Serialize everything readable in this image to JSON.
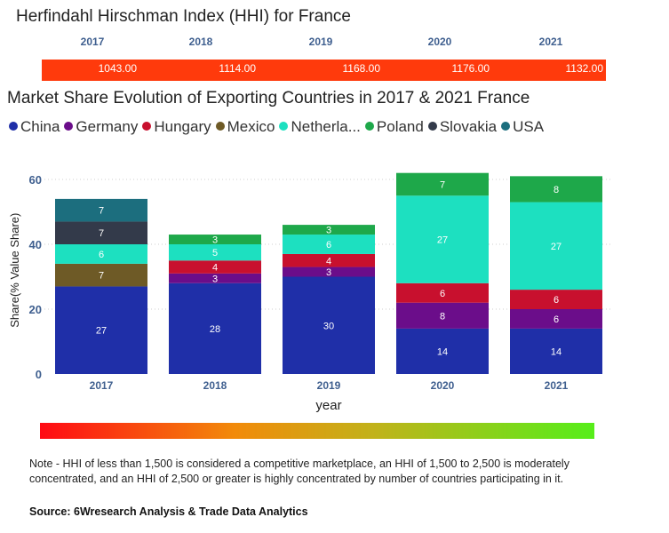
{
  "hhi": {
    "title": "Herfindahl Hirschman Index (HHI) for France",
    "years": [
      "2017",
      "2018",
      "2019",
      "2020",
      "2021"
    ],
    "values": [
      "1043.00",
      "1114.00",
      "1168.00",
      "1176.00",
      "1132.00"
    ],
    "bar_color": "#ff3a0c"
  },
  "chart_data": {
    "type": "bar",
    "stacked": true,
    "title": "Market Share Evolution of Exporting Countries in 2017 & 2021 France",
    "xlabel": "year",
    "ylabel": "Share(% Value Share)",
    "ylim": [
      0,
      65
    ],
    "yticks": [
      0,
      20,
      40,
      60
    ],
    "grid": true,
    "legend_position": "top",
    "categories": [
      "2017",
      "2018",
      "2019",
      "2020",
      "2021"
    ],
    "series": [
      {
        "name": "China",
        "legend_label": "China",
        "color": "#1f2fa8",
        "values": [
          27,
          28,
          30,
          14,
          14
        ]
      },
      {
        "name": "Germany",
        "legend_label": "Germany",
        "color": "#6b0d8a",
        "values": [
          0,
          3,
          3,
          8,
          6
        ]
      },
      {
        "name": "Hungary",
        "legend_label": "Hungary",
        "color": "#c8102e",
        "values": [
          0,
          4,
          4,
          6,
          6
        ]
      },
      {
        "name": "Mexico",
        "legend_label": "Mexico",
        "color": "#6e5a26",
        "values": [
          7,
          0,
          0,
          0,
          0
        ]
      },
      {
        "name": "Netherlands",
        "legend_label": "Netherla...",
        "color": "#1de0c0",
        "values": [
          6,
          5,
          6,
          27,
          27
        ]
      },
      {
        "name": "Poland",
        "legend_label": "Poland",
        "color": "#1ea84a",
        "values": [
          0,
          3,
          3,
          7,
          8
        ]
      },
      {
        "name": "Slovakia",
        "legend_label": "Slovakia",
        "color": "#333a4a",
        "values": [
          7,
          0,
          0,
          0,
          0
        ]
      },
      {
        "name": "USA",
        "legend_label": "USA",
        "color": "#1c6e7e",
        "values": [
          7,
          0,
          0,
          0,
          0
        ]
      }
    ]
  },
  "note": "Note - HHI of less than 1,500 is considered a competitive marketplace, an HHI of 1,500 to 2,500 is moderately concentrated, and an HHI of 2,500 or greater is highly concentrated by number of countries participating in it.",
  "source": "Source: 6Wresearch Analysis & Trade Data Analytics"
}
